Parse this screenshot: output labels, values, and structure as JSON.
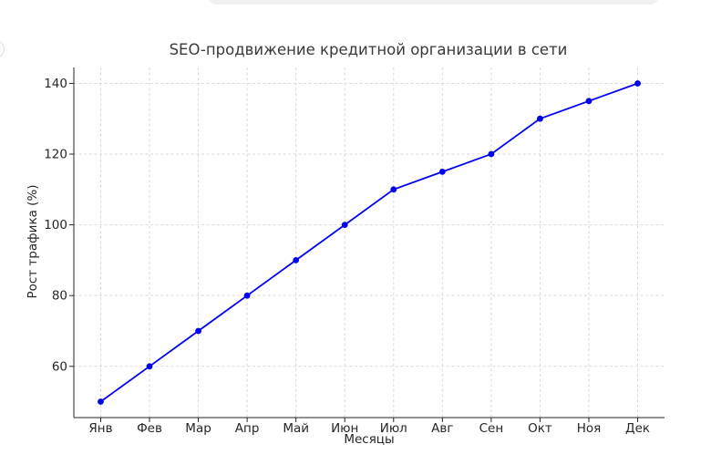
{
  "page": {
    "background_color": "#ffffff"
  },
  "fragments": {
    "top_pill_color": "#f1f1f3",
    "left_circle_border_color": "#e2e2e4"
  },
  "chart_data": {
    "type": "line",
    "title": "SEO-продвижение кредитной организации в сети",
    "xlabel": "Месяцы",
    "ylabel": "Рост трафика (%)",
    "categories": [
      "Янв",
      "Фев",
      "Мар",
      "Апр",
      "Май",
      "Июн",
      "Июл",
      "Авг",
      "Сен",
      "Окт",
      "Ноя",
      "Дек"
    ],
    "series": [
      {
        "name": "Рост трафика",
        "values": [
          50,
          60,
          70,
          80,
          90,
          100,
          110,
          115,
          120,
          130,
          135,
          140
        ]
      }
    ],
    "yticks": [
      60,
      80,
      100,
      120,
      140
    ],
    "ylim": [
      45.5,
      144.5
    ],
    "grid": "dashed, both axes",
    "legend_position": "none",
    "line_color": "#0202f0",
    "marker": "circle",
    "grid_color": "#d9d9d9",
    "axis_color": "#262626",
    "text_color": "#262626",
    "title_color": "#3a3a3a"
  }
}
